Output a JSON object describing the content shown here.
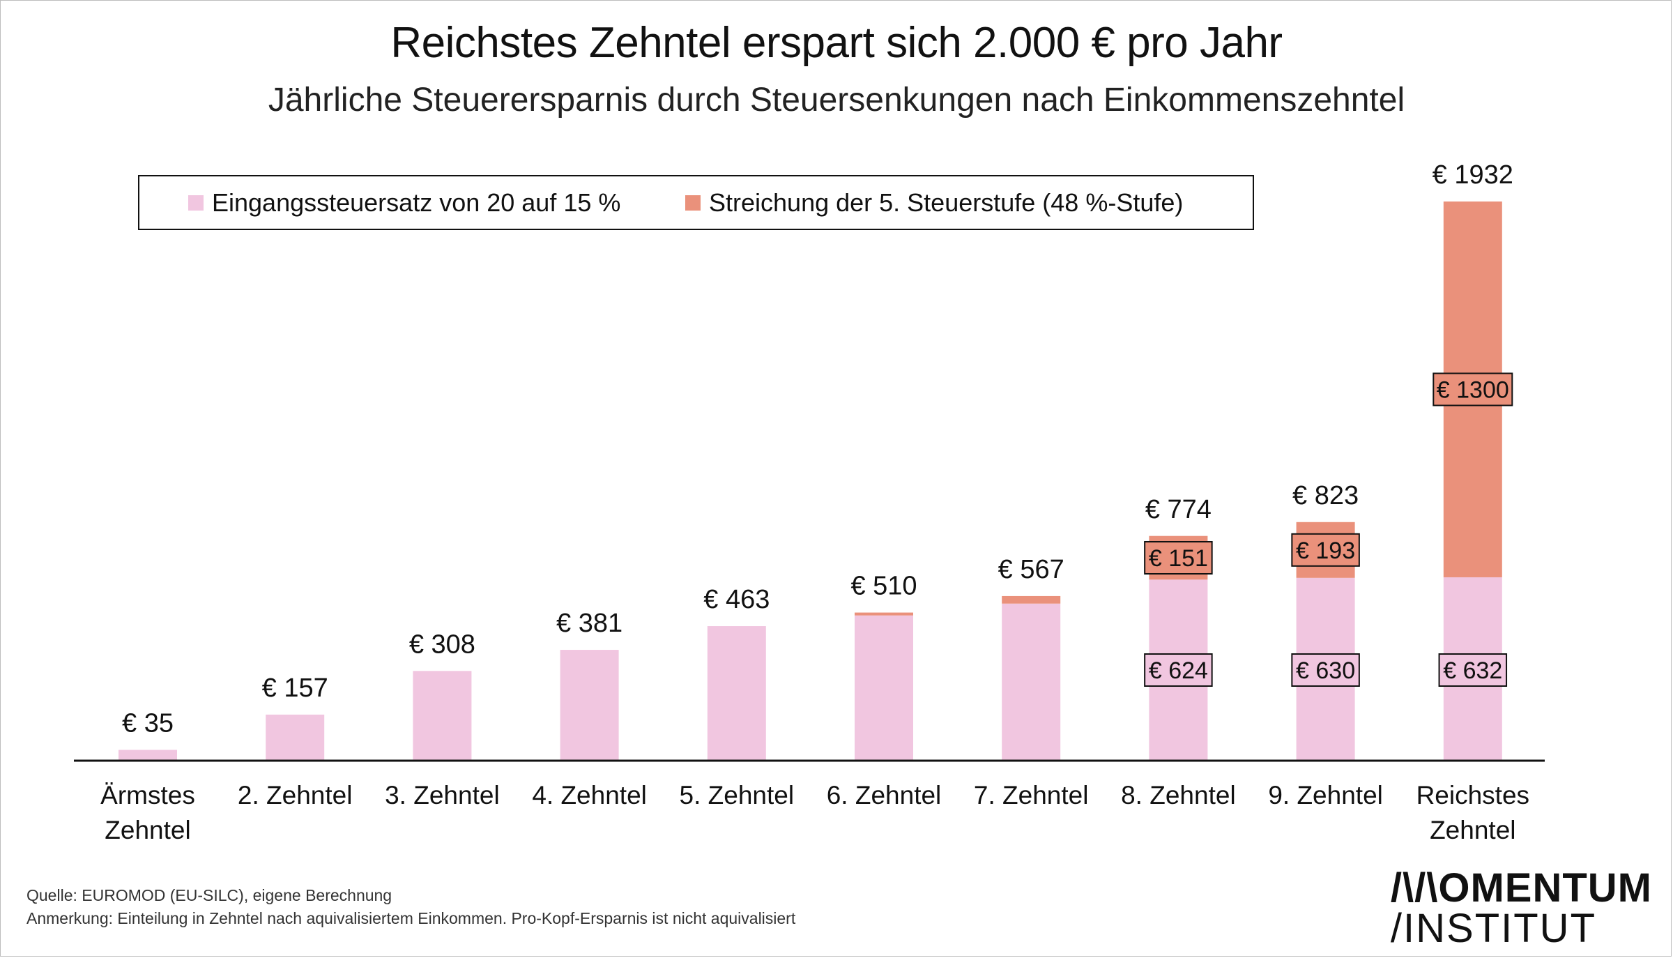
{
  "header": {
    "title": "Reichstes Zehntel erspart sich 2.000 € pro Jahr",
    "subtitle": "Jährliche Steuerersparnis durch Steuersenkungen nach Einkommenszehntel"
  },
  "footer": {
    "source": "Quelle: EUROMOD (EU-SILC), eigene Berechnung",
    "note": "Anmerkung: Einteilung in Zehntel nach aquivalisiertem Einkommen. Pro-Kopf-Ersparnis ist nicht aquivalisiert",
    "logo_line1": "/\\/\\OMENTUM",
    "logo_line2": "/INSTITUT"
  },
  "colors": {
    "series1": "#f1c6e0",
    "series2": "#ea917b",
    "axis": "#111111"
  },
  "chart_data": {
    "type": "bar",
    "stacked": true,
    "title": "Reichstes Zehntel erspart sich 2.000 € pro Jahr",
    "subtitle": "Jährliche Steuerersparnis durch Steuersenkungen nach Einkommenszehntel",
    "legend_position": "top-left",
    "grid": false,
    "ylim": [
      0,
      1932
    ],
    "categories": [
      [
        "Ärmstes",
        "Zehntel"
      ],
      [
        "2. Zehntel"
      ],
      [
        "3. Zehntel"
      ],
      [
        "4. Zehntel"
      ],
      [
        "5. Zehntel"
      ],
      [
        "6. Zehntel"
      ],
      [
        "7. Zehntel"
      ],
      [
        "8. Zehntel"
      ],
      [
        "9. Zehntel"
      ],
      [
        "Reichstes",
        "Zehntel"
      ]
    ],
    "series": [
      {
        "name": "Eingangssteuersatz von 20 auf 15 %",
        "color": "#f1c6e0",
        "values": [
          35,
          157,
          308,
          381,
          463,
          500,
          541,
          624,
          630,
          632
        ],
        "labels": [
          "",
          "",
          "",
          "",
          "",
          "",
          "",
          "€ 624",
          "€ 630",
          "€ 632"
        ]
      },
      {
        "name": "Streichung der 5. Steuerstufe (48 %-Stufe)",
        "color": "#ea917b",
        "values": [
          0,
          0,
          0,
          0,
          0,
          10,
          26,
          151,
          193,
          1300
        ],
        "labels": [
          "",
          "",
          "",
          "",
          "",
          "",
          "",
          "€ 151",
          "€ 193",
          "€ 1300"
        ]
      }
    ],
    "totals": [
      35,
      157,
      308,
      381,
      463,
      510,
      567,
      774,
      823,
      1932
    ],
    "total_labels": [
      "€ 35",
      "€ 157",
      "€ 308",
      "€ 381",
      "€ 463",
      "€ 510",
      "€ 567",
      "€ 774",
      "€ 823",
      "€ 1932"
    ]
  }
}
